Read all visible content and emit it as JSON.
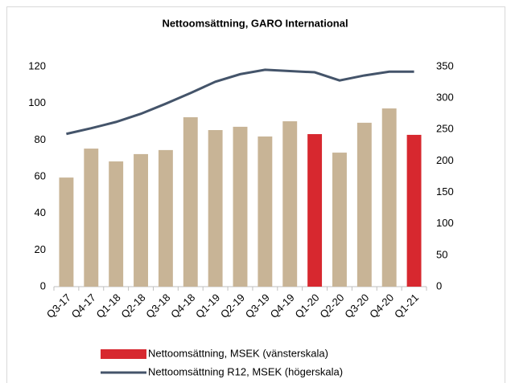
{
  "chart_data": {
    "type": "bar",
    "title": "Nettoomsättning, GARO International",
    "categories": [
      "Q3-17",
      "Q4-17",
      "Q1-18",
      "Q2-18",
      "Q3-18",
      "Q4-18",
      "Q1-19",
      "Q2-19",
      "Q3-19",
      "Q4-19",
      "Q1-20",
      "Q2-20",
      "Q3-20",
      "Q4-20",
      "Q1-21"
    ],
    "series": [
      {
        "name": "Nettoomsättning, MSEK (vänsterskala)",
        "type": "bar",
        "color": "#d7282f",
        "colors": [
          "#c8b496",
          "#c8b496",
          "#c8b496",
          "#c8b496",
          "#c8b496",
          "#c8b496",
          "#c8b496",
          "#c8b496",
          "#c8b496",
          "#c8b496",
          "#d7282f",
          "#c8b496",
          "#c8b496",
          "#c8b496",
          "#d7282f"
        ],
        "values": [
          59.5,
          75.3,
          68.3,
          72.3,
          74.5,
          92.4,
          85.4,
          87.2,
          81.9,
          90.2,
          83.2,
          73.1,
          89.4,
          97.2,
          82.8
        ]
      },
      {
        "name": "Nettoomsättning R12, MSEK (högerskala)",
        "type": "line",
        "axis": "y2",
        "color": "#44546a",
        "values": [
          243,
          252,
          262,
          275,
          291,
          308,
          326,
          338,
          345,
          343,
          341,
          328,
          336,
          342,
          342
        ]
      }
    ],
    "ylim": [
      0,
      120
    ],
    "yticks": [
      0,
      20,
      40,
      60,
      80,
      100,
      120
    ],
    "y2lim": [
      0,
      350
    ],
    "y2ticks": [
      0,
      50,
      100,
      150,
      200,
      250,
      300,
      350
    ],
    "grid": false,
    "legend": "bottom"
  }
}
